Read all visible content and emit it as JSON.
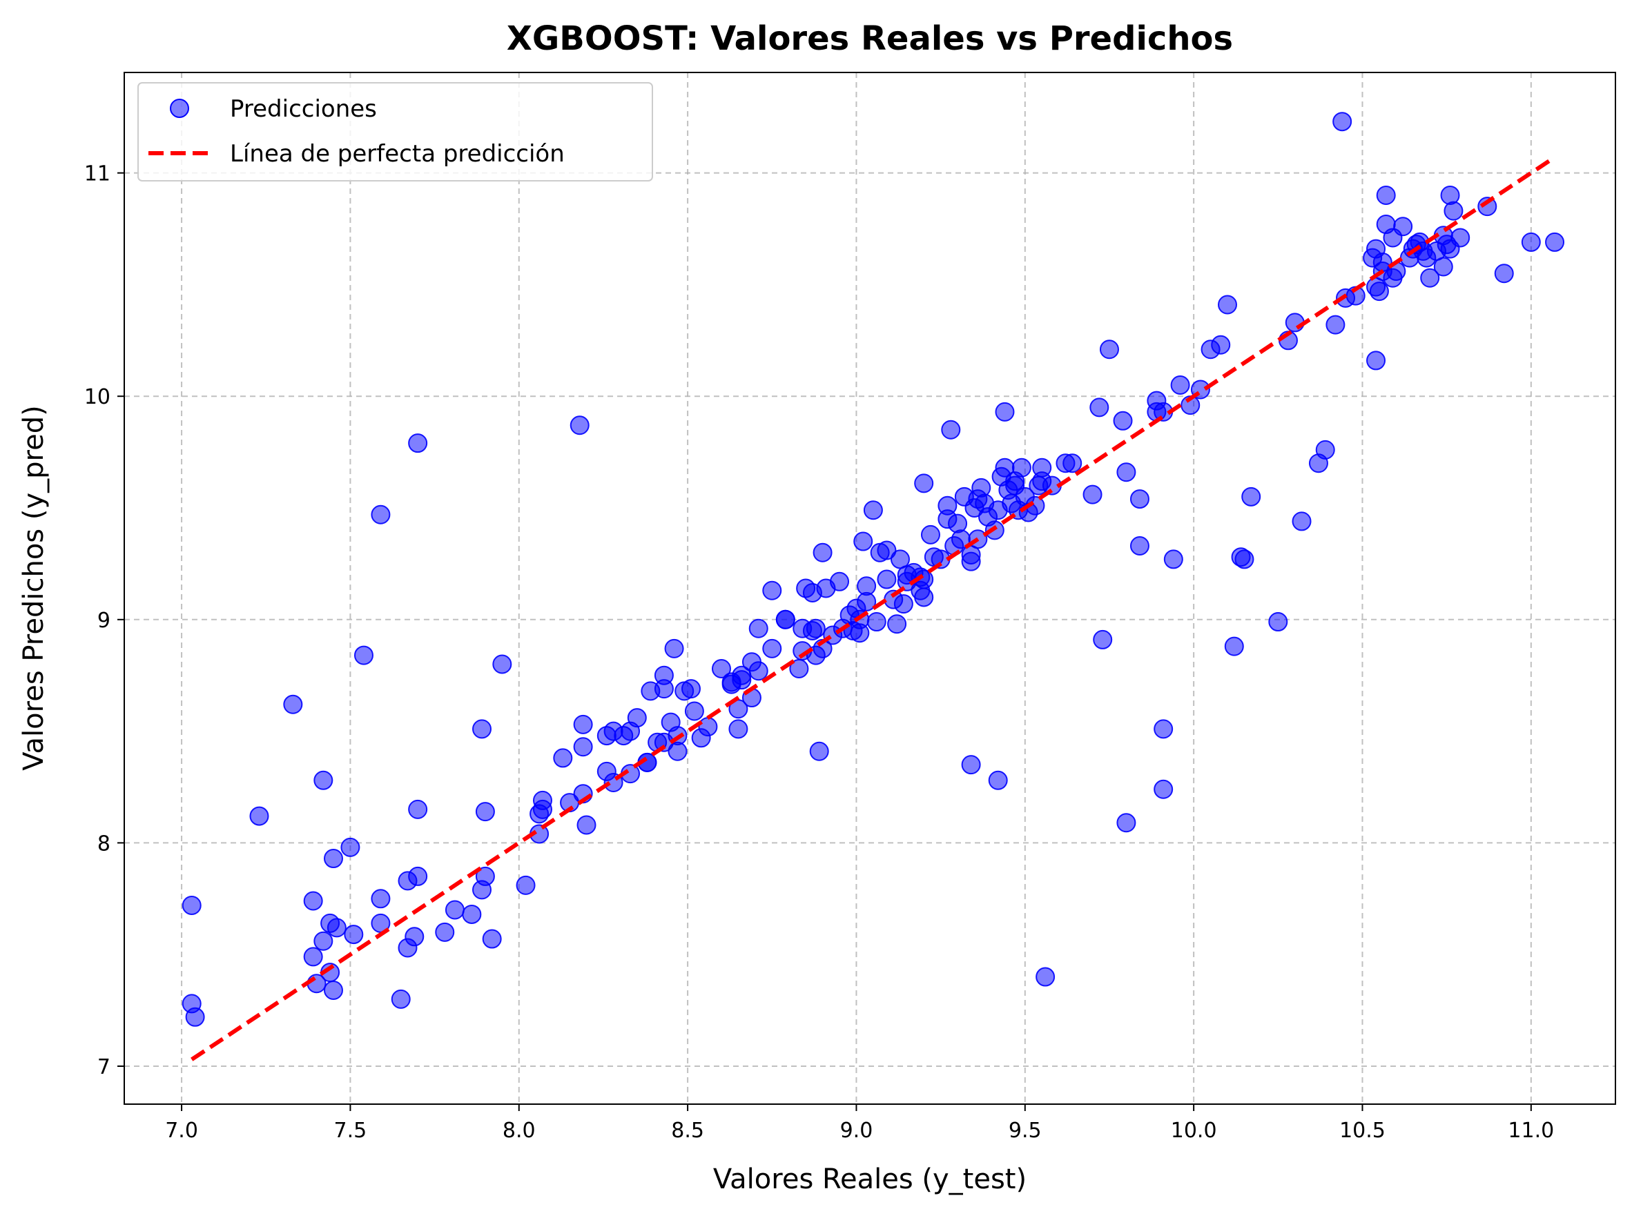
{
  "chart_data": {
    "type": "scatter",
    "title": "XGBOOST: Valores Reales vs Predichos",
    "xlabel": "Valores Reales (y_test)",
    "ylabel": "Valores Predichos (y_pred)",
    "xlim": [
      6.83,
      11.25
    ],
    "ylim": [
      6.83,
      11.45
    ],
    "xticks": [
      "7.0",
      "7.5",
      "8.0",
      "8.5",
      "9.0",
      "9.5",
      "10.0",
      "10.5",
      "11.0"
    ],
    "yticks": [
      "7",
      "8",
      "9",
      "10",
      "11"
    ],
    "grid": true,
    "legend_position": "top-left",
    "colors": {
      "points": "#0000ff",
      "line": "#ff0000",
      "grid": "#b0b0b0"
    },
    "series": [
      {
        "name": "Predicciones",
        "kind": "scatter",
        "points": [
          [
            7.03,
            7.72
          ],
          [
            7.03,
            7.28
          ],
          [
            7.04,
            7.22
          ],
          [
            7.23,
            8.12
          ],
          [
            7.33,
            8.62
          ],
          [
            7.39,
            7.74
          ],
          [
            7.39,
            7.49
          ],
          [
            7.4,
            7.37
          ],
          [
            7.42,
            8.28
          ],
          [
            7.42,
            7.56
          ],
          [
            7.44,
            7.64
          ],
          [
            7.44,
            7.42
          ],
          [
            7.45,
            7.34
          ],
          [
            7.45,
            7.93
          ],
          [
            7.46,
            7.62
          ],
          [
            7.5,
            7.98
          ],
          [
            7.51,
            7.59
          ],
          [
            7.54,
            8.84
          ],
          [
            7.59,
            9.47
          ],
          [
            7.59,
            7.75
          ],
          [
            7.59,
            7.64
          ],
          [
            7.65,
            7.3
          ],
          [
            7.67,
            7.83
          ],
          [
            7.67,
            7.53
          ],
          [
            7.69,
            7.58
          ],
          [
            7.7,
            9.79
          ],
          [
            7.7,
            8.15
          ],
          [
            7.7,
            7.85
          ],
          [
            7.78,
            7.6
          ],
          [
            7.81,
            7.7
          ],
          [
            7.86,
            7.68
          ],
          [
            7.89,
            8.51
          ],
          [
            7.89,
            7.79
          ],
          [
            7.9,
            7.85
          ],
          [
            7.9,
            8.14
          ],
          [
            7.92,
            7.57
          ],
          [
            7.95,
            8.8
          ],
          [
            8.02,
            7.81
          ],
          [
            8.06,
            8.13
          ],
          [
            8.06,
            8.04
          ],
          [
            8.07,
            8.19
          ],
          [
            8.07,
            8.15
          ],
          [
            8.13,
            8.38
          ],
          [
            8.15,
            8.18
          ],
          [
            8.18,
            9.87
          ],
          [
            8.19,
            8.53
          ],
          [
            8.19,
            8.43
          ],
          [
            8.19,
            8.22
          ],
          [
            8.2,
            8.08
          ],
          [
            8.26,
            8.32
          ],
          [
            8.26,
            8.48
          ],
          [
            8.28,
            8.5
          ],
          [
            8.28,
            8.27
          ],
          [
            8.31,
            8.48
          ],
          [
            8.33,
            8.5
          ],
          [
            8.33,
            8.31
          ],
          [
            8.35,
            8.56
          ],
          [
            8.38,
            8.36
          ],
          [
            8.38,
            8.36
          ],
          [
            8.39,
            8.68
          ],
          [
            8.41,
            8.45
          ],
          [
            8.43,
            8.75
          ],
          [
            8.43,
            8.69
          ],
          [
            8.43,
            8.45
          ],
          [
            8.45,
            8.54
          ],
          [
            8.46,
            8.87
          ],
          [
            8.47,
            8.41
          ],
          [
            8.47,
            8.48
          ],
          [
            8.49,
            8.68
          ],
          [
            8.51,
            8.69
          ],
          [
            8.52,
            8.59
          ],
          [
            8.54,
            8.47
          ],
          [
            8.56,
            8.52
          ],
          [
            8.6,
            8.78
          ],
          [
            8.63,
            8.72
          ],
          [
            8.63,
            8.71
          ],
          [
            8.65,
            8.51
          ],
          [
            8.65,
            8.6
          ],
          [
            8.66,
            8.75
          ],
          [
            8.66,
            8.73
          ],
          [
            8.69,
            8.65
          ],
          [
            8.69,
            8.81
          ],
          [
            8.71,
            8.96
          ],
          [
            8.71,
            8.77
          ],
          [
            8.75,
            8.87
          ],
          [
            8.75,
            9.13
          ],
          [
            8.79,
            9.0
          ],
          [
            8.79,
            9.0
          ],
          [
            8.83,
            8.78
          ],
          [
            8.84,
            8.86
          ],
          [
            8.84,
            8.96
          ],
          [
            8.85,
            9.14
          ],
          [
            8.87,
            9.12
          ],
          [
            8.87,
            8.95
          ],
          [
            8.88,
            8.96
          ],
          [
            8.88,
            8.84
          ],
          [
            8.89,
            8.41
          ],
          [
            8.9,
            9.3
          ],
          [
            8.9,
            8.87
          ],
          [
            8.91,
            9.14
          ],
          [
            8.93,
            8.93
          ],
          [
            8.95,
            9.17
          ],
          [
            8.96,
            8.96
          ],
          [
            8.98,
            9.02
          ],
          [
            8.99,
            8.95
          ],
          [
            9.0,
            9.05
          ],
          [
            9.01,
            8.94
          ],
          [
            9.01,
            9.0
          ],
          [
            9.02,
            9.35
          ],
          [
            9.03,
            9.08
          ],
          [
            9.03,
            9.15
          ],
          [
            9.05,
            9.49
          ],
          [
            9.06,
            8.99
          ],
          [
            9.07,
            9.3
          ],
          [
            9.09,
            9.31
          ],
          [
            9.09,
            9.18
          ],
          [
            9.11,
            9.09
          ],
          [
            9.12,
            8.98
          ],
          [
            9.13,
            9.27
          ],
          [
            9.14,
            9.07
          ],
          [
            9.15,
            9.17
          ],
          [
            9.15,
            9.2
          ],
          [
            9.17,
            9.21
          ],
          [
            9.19,
            9.13
          ],
          [
            9.19,
            9.19
          ],
          [
            9.2,
            9.61
          ],
          [
            9.2,
            9.1
          ],
          [
            9.2,
            9.18
          ],
          [
            9.22,
            9.38
          ],
          [
            9.23,
            9.28
          ],
          [
            9.25,
            9.27
          ],
          [
            9.27,
            9.51
          ],
          [
            9.27,
            9.45
          ],
          [
            9.28,
            9.85
          ],
          [
            9.29,
            9.33
          ],
          [
            9.3,
            9.43
          ],
          [
            9.31,
            9.36
          ],
          [
            9.32,
            9.55
          ],
          [
            9.34,
            9.29
          ],
          [
            9.34,
            9.26
          ],
          [
            9.34,
            8.35
          ],
          [
            9.35,
            9.5
          ],
          [
            9.36,
            9.36
          ],
          [
            9.36,
            9.54
          ],
          [
            9.37,
            9.59
          ],
          [
            9.38,
            9.52
          ],
          [
            9.39,
            9.46
          ],
          [
            9.41,
            9.4
          ],
          [
            9.42,
            9.49
          ],
          [
            9.42,
            8.28
          ],
          [
            9.43,
            9.64
          ],
          [
            9.44,
            9.68
          ],
          [
            9.44,
            9.93
          ],
          [
            9.45,
            9.58
          ],
          [
            9.46,
            9.52
          ],
          [
            9.47,
            9.62
          ],
          [
            9.47,
            9.6
          ],
          [
            9.48,
            9.49
          ],
          [
            9.49,
            9.68
          ],
          [
            9.5,
            9.55
          ],
          [
            9.51,
            9.48
          ],
          [
            9.53,
            9.51
          ],
          [
            9.54,
            9.6
          ],
          [
            9.55,
            9.62
          ],
          [
            9.55,
            9.68
          ],
          [
            9.56,
            7.4
          ],
          [
            9.58,
            9.6
          ],
          [
            9.62,
            9.7
          ],
          [
            9.64,
            9.7
          ],
          [
            9.7,
            9.56
          ],
          [
            9.72,
            9.95
          ],
          [
            9.73,
            8.91
          ],
          [
            9.75,
            10.21
          ],
          [
            9.79,
            9.89
          ],
          [
            9.8,
            9.66
          ],
          [
            9.8,
            8.09
          ],
          [
            9.84,
            9.54
          ],
          [
            9.84,
            9.33
          ],
          [
            9.89,
            9.98
          ],
          [
            9.89,
            9.93
          ],
          [
            9.91,
            9.93
          ],
          [
            9.91,
            8.24
          ],
          [
            9.91,
            8.51
          ],
          [
            9.94,
            9.27
          ],
          [
            9.96,
            10.05
          ],
          [
            9.99,
            9.96
          ],
          [
            10.02,
            10.03
          ],
          [
            10.05,
            10.21
          ],
          [
            10.08,
            10.23
          ],
          [
            10.1,
            10.41
          ],
          [
            10.12,
            8.88
          ],
          [
            10.14,
            9.28
          ],
          [
            10.15,
            9.27
          ],
          [
            10.17,
            9.55
          ],
          [
            10.25,
            8.99
          ],
          [
            10.28,
            10.25
          ],
          [
            10.3,
            10.33
          ],
          [
            10.32,
            9.44
          ],
          [
            10.37,
            9.7
          ],
          [
            10.39,
            9.76
          ],
          [
            10.42,
            10.32
          ],
          [
            10.44,
            11.23
          ],
          [
            10.45,
            10.44
          ],
          [
            10.48,
            10.45
          ],
          [
            10.53,
            10.62
          ],
          [
            10.54,
            10.66
          ],
          [
            10.54,
            10.49
          ],
          [
            10.54,
            10.16
          ],
          [
            10.56,
            10.6
          ],
          [
            10.56,
            10.56
          ],
          [
            10.55,
            10.47
          ],
          [
            10.57,
            10.9
          ],
          [
            10.57,
            10.77
          ],
          [
            10.59,
            10.53
          ],
          [
            10.59,
            10.71
          ],
          [
            10.6,
            10.56
          ],
          [
            10.62,
            10.76
          ],
          [
            10.64,
            10.62
          ],
          [
            10.65,
            10.66
          ],
          [
            10.66,
            10.68
          ],
          [
            10.67,
            10.69
          ],
          [
            10.68,
            10.65
          ],
          [
            10.69,
            10.62
          ],
          [
            10.7,
            10.53
          ],
          [
            10.72,
            10.65
          ],
          [
            10.74,
            10.72
          ],
          [
            10.74,
            10.58
          ],
          [
            10.75,
            10.68
          ],
          [
            10.76,
            10.9
          ],
          [
            10.76,
            10.66
          ],
          [
            10.77,
            10.83
          ],
          [
            10.79,
            10.71
          ],
          [
            10.87,
            10.85
          ],
          [
            10.92,
            10.55
          ],
          [
            11.0,
            10.69
          ],
          [
            11.07,
            10.69
          ]
        ]
      },
      {
        "name": "Línea de perfecta predicción",
        "kind": "line",
        "x": [
          7.03,
          11.07
        ],
        "y": [
          7.03,
          11.07
        ]
      }
    ]
  }
}
